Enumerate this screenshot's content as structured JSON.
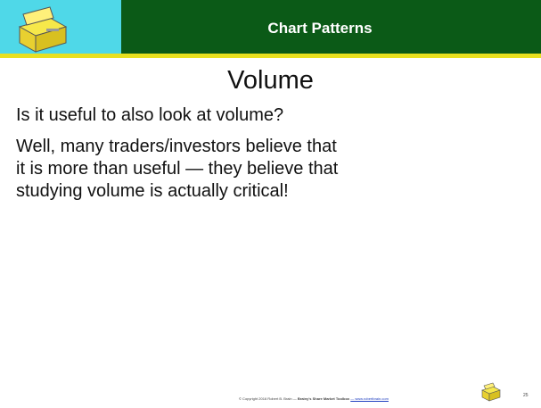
{
  "header": {
    "title": "Chart Patterns"
  },
  "slide": {
    "title": "Volume",
    "question": "Is it useful to also look at volume?",
    "answer_lines": [
      "Well, many traders/investors believe that",
      "it is more than useful — they believe that",
      "studying volume is actually critical!"
    ]
  },
  "footer": {
    "copyright": "© Copyright 2016 Robert B. Brain —",
    "toolbox": "Brainy's Share Market Toolbox",
    "url": "— www.robertbrain.com",
    "page": "25"
  }
}
